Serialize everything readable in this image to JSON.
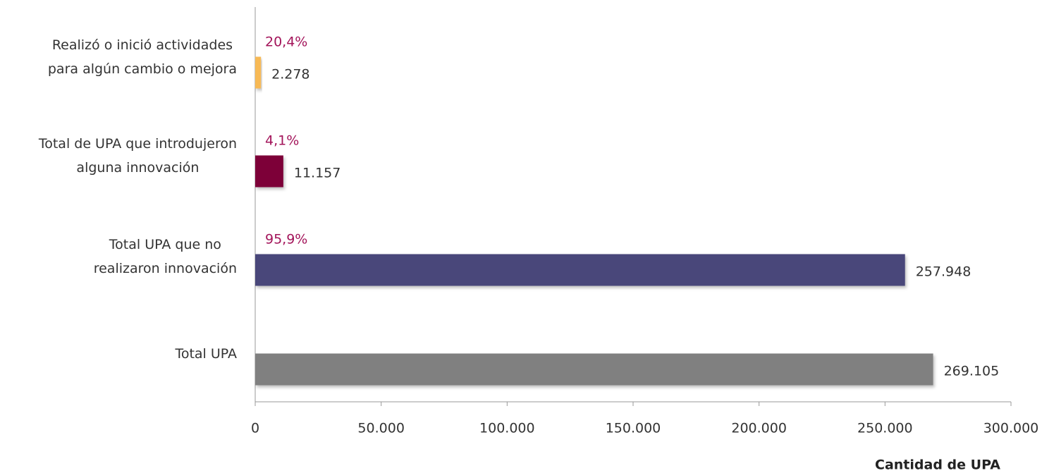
{
  "chart_data": {
    "type": "hbar",
    "categories": [
      [
        "Realizó o inició actividades",
        "para algún cambio o mejora"
      ],
      [
        "Total de UPA que introdujeron",
        "alguna innovación"
      ],
      [
        "Total UPA que no",
        "realizaron innovación"
      ],
      [
        "Total UPA"
      ]
    ],
    "values": [
      2278,
      11157,
      257948,
      269105
    ],
    "value_labels": [
      "2.278",
      "11.157",
      "257.948",
      "269.105"
    ],
    "percent_labels": [
      "20,4%",
      "4,1%",
      "95,9%",
      null
    ],
    "colors": [
      "#f7b955",
      "#7d0037",
      "#48467a",
      "#808080"
    ],
    "percent_color": "#a3145a",
    "xlim": [
      0,
      300000
    ],
    "xticks": [
      0,
      {
        "value": 50000,
        "label": "50.000"
      },
      {
        "value": 100000,
        "label": "100.000"
      },
      {
        "value": 150000,
        "label": "150.000"
      },
      {
        "value": 200000,
        "label": "200.000"
      },
      {
        "value": 250000,
        "label": "250.000"
      },
      {
        "value": 300000,
        "label": "300.000"
      }
    ],
    "x_label": "Cantidad de UPA"
  }
}
